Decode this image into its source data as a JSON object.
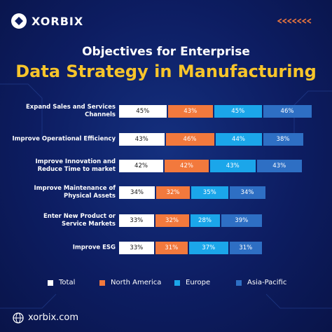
{
  "header": {
    "brand": "XORBIX"
  },
  "chart_data": {
    "type": "bar",
    "orientation": "horizontal",
    "stacked": true,
    "title": "Objectives for Enterprise",
    "subtitle": "Data Strategy in Manufacturing",
    "categories": [
      "Expand Sales and Services Channels",
      "Improve Operational Efficiency",
      "Improve Innovation and Reduce Time to market",
      "Improve Maintenance of Physical Assets",
      "Enter New Product or Service Markets",
      "Improve ESG"
    ],
    "series": [
      {
        "name": "Total",
        "color": "#ffffff",
        "values": [
          45,
          43,
          42,
          34,
          33,
          33
        ],
        "value_labels": [
          "45%",
          "43%",
          "42%",
          "34%",
          "33%",
          "33%"
        ]
      },
      {
        "name": "North America",
        "color": "#f2793d",
        "values": [
          43,
          46,
          42,
          32,
          32,
          31
        ],
        "value_labels": [
          "43%",
          "46%",
          "42%",
          "32%",
          "32%",
          "31%"
        ]
      },
      {
        "name": "Europe",
        "color": "#1ba6ea",
        "values": [
          45,
          44,
          43,
          35,
          28,
          37
        ],
        "value_labels": [
          "45%",
          "44%",
          "43%",
          "35%",
          "28%",
          "37%"
        ]
      },
      {
        "name": "Asia-Pacific",
        "color": "#2e6fc4",
        "values": [
          46,
          38,
          43,
          34,
          39,
          31
        ],
        "value_labels": [
          "46%",
          "38%",
          "43%",
          "34%",
          "39%",
          "31%"
        ]
      }
    ]
  },
  "footer": {
    "url": "xorbix.com"
  }
}
